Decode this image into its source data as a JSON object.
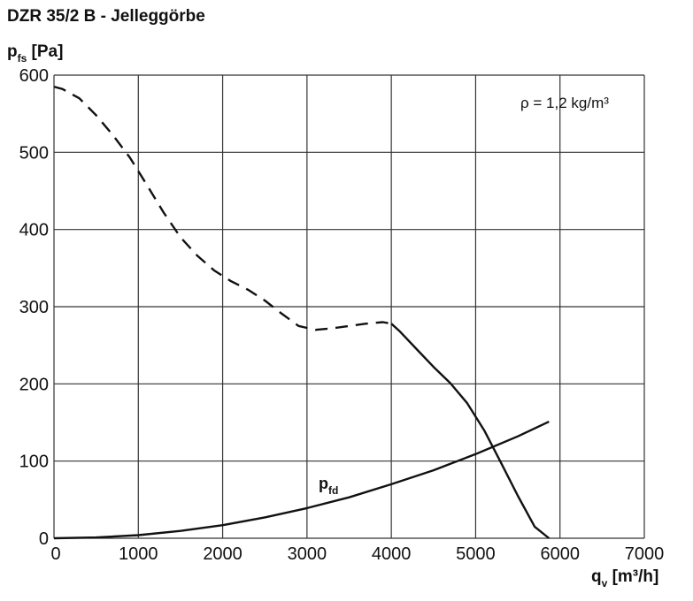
{
  "chart_data": {
    "type": "line",
    "title": "DZR 35/2 B - Jelleggörbe",
    "ylabel": {
      "main": "p",
      "sub": "fs",
      "unit": " [Pa]"
    },
    "xlabel": {
      "main": "q",
      "sub": "v",
      "unit": " [m³/h]"
    },
    "xlim": [
      0,
      7000
    ],
    "ylim": [
      0,
      600
    ],
    "x_ticks": [
      0,
      1000,
      2000,
      3000,
      4000,
      5000,
      6000,
      7000
    ],
    "y_ticks": [
      0,
      100,
      200,
      300,
      400,
      500,
      600
    ],
    "grid": true,
    "annotation": "ρ = 1,2 kg/m³",
    "series": [
      {
        "style": "dashed",
        "x": [
          0,
          100,
          300,
          500,
          700,
          900,
          1100,
          1300,
          1500,
          1700,
          1900,
          2100,
          2300,
          2500,
          2700,
          2900,
          3100,
          3300,
          3500,
          3700,
          3900,
          4000
        ],
        "y": [
          585,
          582,
          570,
          548,
          522,
          493,
          458,
          422,
          390,
          366,
          347,
          333,
          322,
          308,
          291,
          275,
          270,
          272,
          275,
          278,
          280,
          278
        ]
      },
      {
        "style": "solid",
        "x": [
          4000,
          4100,
          4300,
          4500,
          4700,
          4900,
          5100,
          5300,
          5500,
          5700,
          5870
        ],
        "y": [
          278,
          268,
          245,
          222,
          201,
          175,
          140,
          98,
          55,
          15,
          0
        ]
      },
      {
        "name": "p",
        "name_sub": "fd",
        "style": "solid",
        "x": [
          0,
          500,
          1000,
          1500,
          2000,
          2500,
          3000,
          3500,
          4000,
          4500,
          5000,
          5500,
          5870
        ],
        "y": [
          0,
          1,
          4,
          9.5,
          17,
          27,
          39,
          53,
          70,
          88,
          109,
          132,
          151
        ]
      }
    ]
  }
}
